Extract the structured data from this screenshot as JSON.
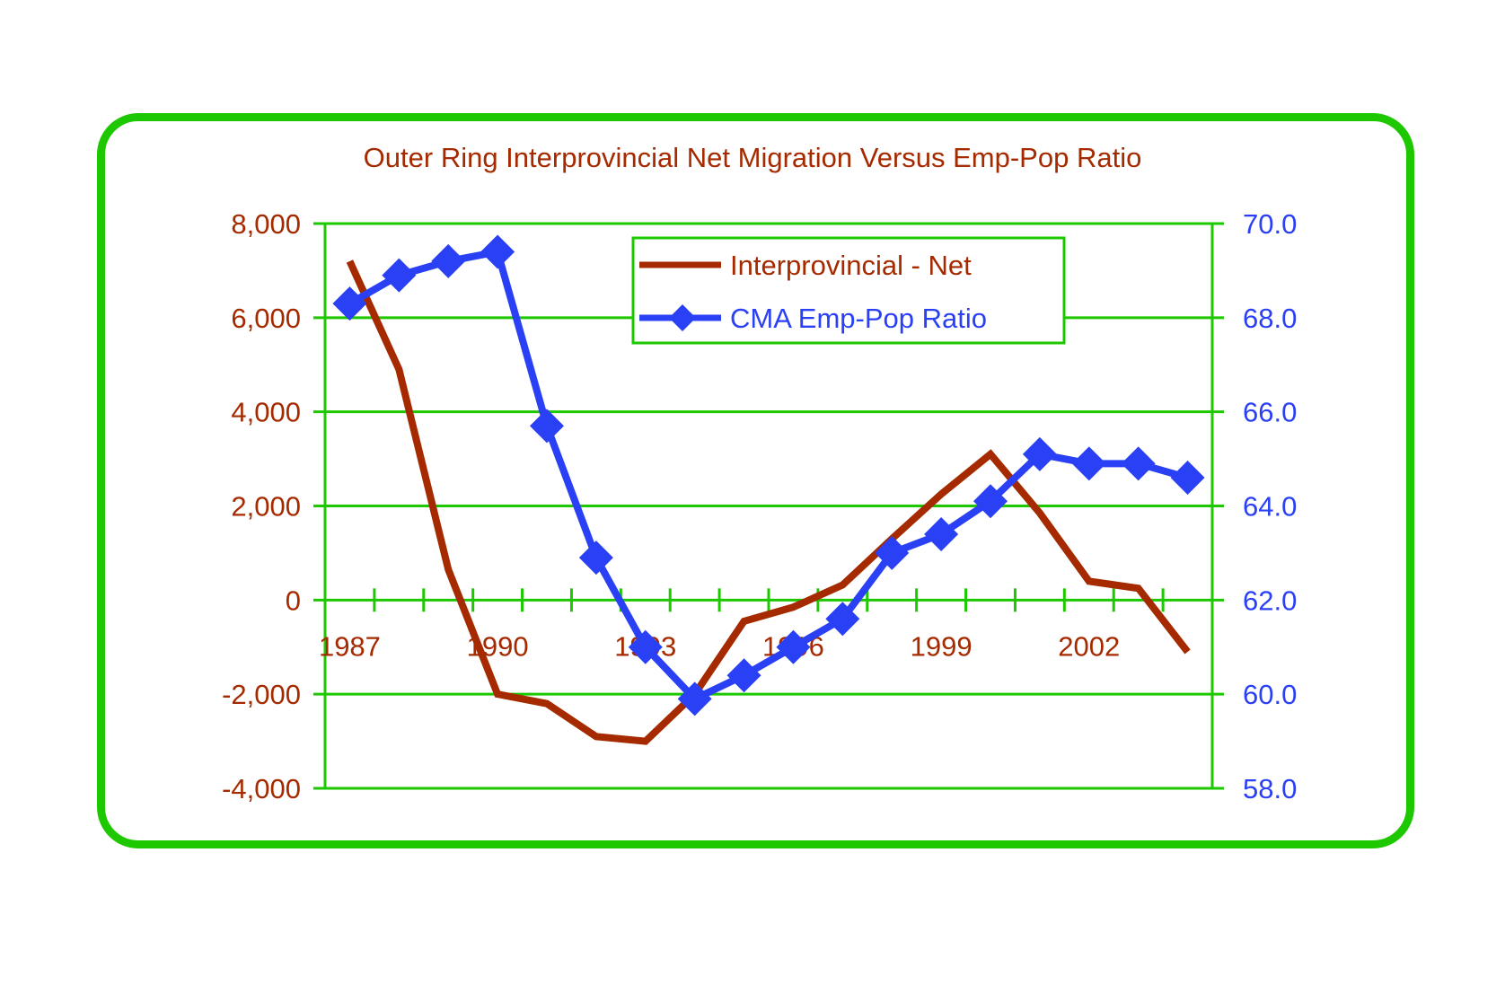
{
  "chart_data": {
    "type": "line",
    "title": "Outer Ring Interprovincial Net Migration Versus Emp-Pop Ratio",
    "xlabel": "",
    "ylabel": "",
    "y2label": "",
    "categories": [
      "1987",
      "1988",
      "1989",
      "1990",
      "1991",
      "1992",
      "1993",
      "1994",
      "1995",
      "1996",
      "1997",
      "1998",
      "1999",
      "2000",
      "2001",
      "2002",
      "2003",
      "2004"
    ],
    "x_tick_labels": [
      "1987",
      "1990",
      "1993",
      "1996",
      "1999",
      "2002"
    ],
    "ylim": [
      -4000,
      8000
    ],
    "y2lim": [
      58.0,
      70.0
    ],
    "y_ticks": [
      "8,000",
      "6,000",
      "4,000",
      "2,000",
      "0",
      "-2,000",
      "-4,000"
    ],
    "y2_ticks": [
      "70.0",
      "68.0",
      "66.0",
      "64.0",
      "62.0",
      "60.0",
      "58.0"
    ],
    "grid": true,
    "legend_position": "top-center",
    "series": [
      {
        "name": "Interprovincial - Net",
        "axis": "left",
        "color": "#a52a00",
        "marker": "none",
        "values": [
          7200,
          4900,
          650,
          -2000,
          -2200,
          -2900,
          -3000,
          -2000,
          -450,
          -150,
          320,
          1300,
          2250,
          3100,
          1850,
          400,
          250,
          -1100
        ]
      },
      {
        "name": "CMA Emp-Pop Ratio",
        "axis": "right",
        "color": "#2a40f5",
        "marker": "diamond",
        "values": [
          68.3,
          68.9,
          69.2,
          69.4,
          65.7,
          62.9,
          61.0,
          59.9,
          60.4,
          61.0,
          61.6,
          63.0,
          63.4,
          64.1,
          65.1,
          64.9,
          64.9,
          64.6
        ]
      }
    ]
  },
  "colors": {
    "frame": "#1ec800",
    "grid": "#1ec800",
    "left_axis_text": "#a52a00",
    "right_axis_text": "#2a40f5"
  }
}
